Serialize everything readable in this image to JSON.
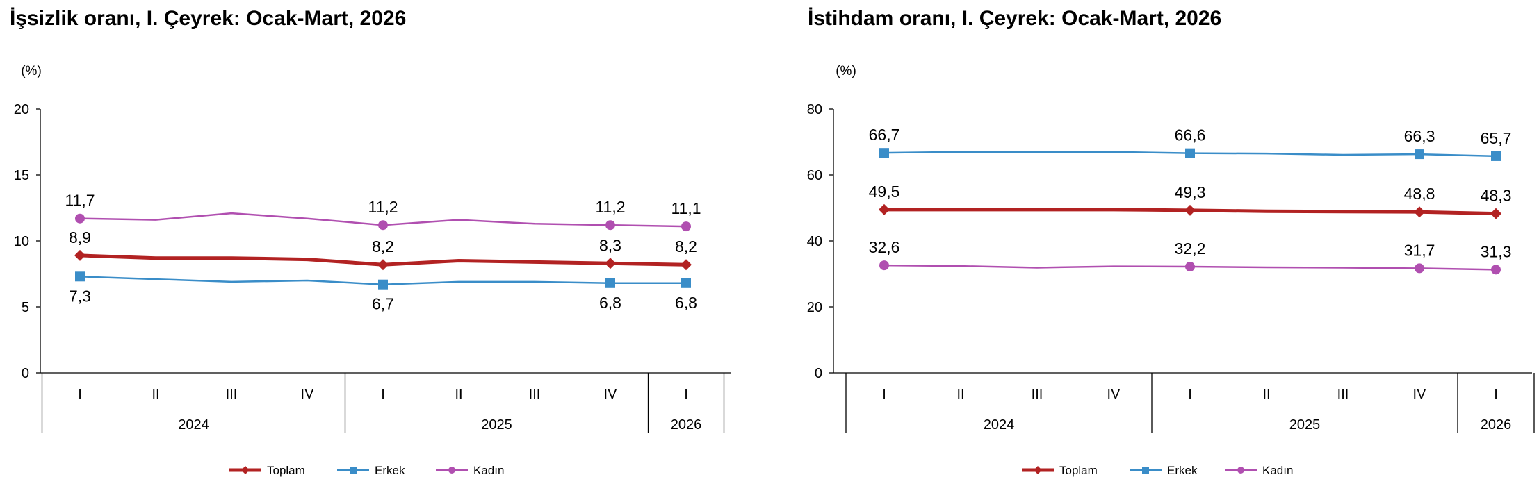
{
  "colors": {
    "toplam": "#b22222",
    "erkek": "#3a8dc8",
    "kadin": "#b04fb0",
    "axis": "#000000"
  },
  "chart_data": [
    {
      "type": "line",
      "title": "İşsizlik oranı, I. Çeyrek: Ocak-Mart, 2026",
      "unit": "(%)",
      "x": [
        "I",
        "II",
        "III",
        "IV",
        "I",
        "II",
        "III",
        "IV",
        "I"
      ],
      "years": [
        {
          "label": "2024",
          "span": [
            0,
            3
          ]
        },
        {
          "label": "2025",
          "span": [
            4,
            7
          ]
        },
        {
          "label": "2026",
          "span": [
            8,
            8
          ]
        }
      ],
      "ylim": [
        0,
        20
      ],
      "yticks": [
        "0",
        "5",
        "10",
        "15",
        "20"
      ],
      "grid": false,
      "legend_position": "bottom",
      "series": [
        {
          "name": "Toplam",
          "key": "toplam",
          "values": [
            8.9,
            8.7,
            8.7,
            8.6,
            8.2,
            8.5,
            8.4,
            8.3,
            8.2
          ],
          "labels": [
            "8,9",
            "",
            "",
            "",
            "8,2",
            "",
            "",
            "8,3",
            "8,2"
          ],
          "label_pos": "above"
        },
        {
          "name": "Erkek",
          "key": "erkek",
          "values": [
            7.3,
            7.1,
            6.9,
            7.0,
            6.7,
            6.9,
            6.9,
            6.8,
            6.8
          ],
          "labels": [
            "7,3",
            "",
            "",
            "",
            "6,7",
            "",
            "",
            "6,8",
            "6,8"
          ],
          "label_pos": "below"
        },
        {
          "name": "Kadın",
          "key": "kadin",
          "values": [
            11.7,
            11.6,
            12.1,
            11.7,
            11.2,
            11.6,
            11.3,
            11.2,
            11.1
          ],
          "labels": [
            "11,7",
            "",
            "",
            "",
            "11,2",
            "",
            "",
            "11,2",
            "11,1"
          ],
          "label_pos": "above"
        }
      ]
    },
    {
      "type": "line",
      "title": "İstihdam oranı, I. Çeyrek: Ocak-Mart, 2026",
      "unit": "(%)",
      "x": [
        "I",
        "II",
        "III",
        "IV",
        "I",
        "II",
        "III",
        "IV",
        "I"
      ],
      "years": [
        {
          "label": "2024",
          "span": [
            0,
            3
          ]
        },
        {
          "label": "2025",
          "span": [
            4,
            7
          ]
        },
        {
          "label": "2026",
          "span": [
            8,
            8
          ]
        }
      ],
      "ylim": [
        0,
        80
      ],
      "yticks": [
        "0",
        "20",
        "40",
        "60",
        "80"
      ],
      "grid": false,
      "legend_position": "bottom",
      "series": [
        {
          "name": "Toplam",
          "key": "toplam",
          "values": [
            49.5,
            49.5,
            49.5,
            49.5,
            49.3,
            49.0,
            48.9,
            48.8,
            48.3
          ],
          "labels": [
            "49,5",
            "",
            "",
            "",
            "49,3",
            "",
            "",
            "48,8",
            "48,3"
          ],
          "label_pos": "above"
        },
        {
          "name": "Erkek",
          "key": "erkek",
          "values": [
            66.7,
            67.0,
            67.0,
            67.0,
            66.6,
            66.5,
            66.1,
            66.3,
            65.7
          ],
          "labels": [
            "66,7",
            "",
            "",
            "",
            "66,6",
            "",
            "",
            "66,3",
            "65,7"
          ],
          "label_pos": "above"
        },
        {
          "name": "Kadın",
          "key": "kadin",
          "values": [
            32.6,
            32.4,
            31.9,
            32.3,
            32.2,
            32.0,
            31.9,
            31.7,
            31.3
          ],
          "labels": [
            "32,6",
            "",
            "",
            "",
            "32,2",
            "",
            "",
            "31,7",
            "31,3"
          ],
          "label_pos": "above"
        }
      ]
    }
  ]
}
